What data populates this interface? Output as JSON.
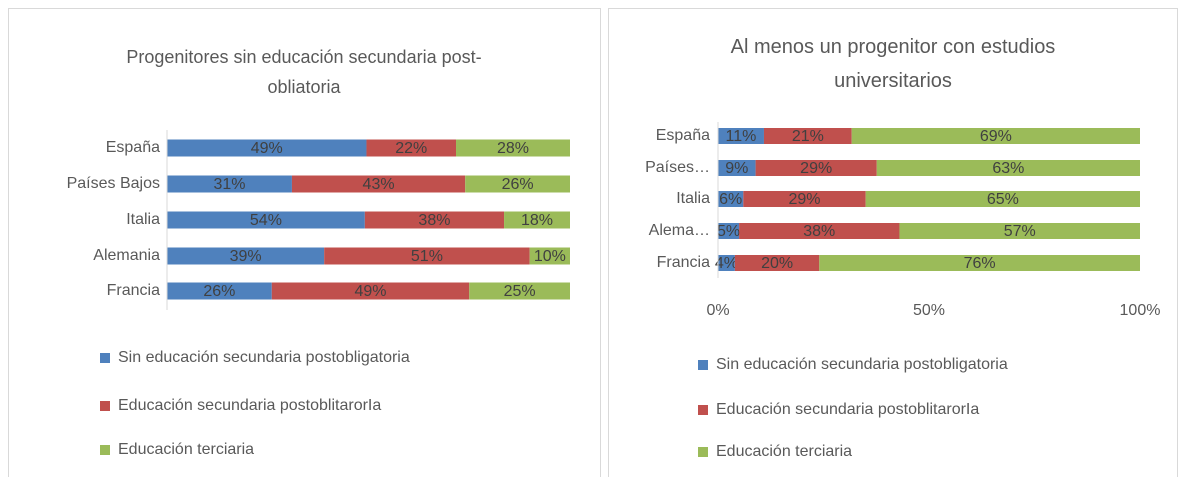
{
  "chart_data": [
    {
      "type": "bar",
      "orientation": "horizontal",
      "stacking": "percent",
      "title": "Progenitores sin educación secundaria post-obliatoria",
      "categories": [
        "España",
        "Países Bajos",
        "Italia",
        "Alemania",
        "Francia"
      ],
      "series": [
        {
          "name": "Sin educación secundaria postobligatoria",
          "color": "#4f81bd",
          "values": [
            49,
            31,
            54,
            39,
            26
          ],
          "value_labels": [
            "49%",
            "31%",
            "54%",
            "39%",
            "26%"
          ]
        },
        {
          "name": "Educación secundaria postoblitarorIa",
          "color": "#c0504d",
          "values": [
            22,
            43,
            38,
            51,
            49
          ],
          "value_labels": [
            "22%",
            "43%",
            "38%",
            "51%",
            "49%"
          ]
        },
        {
          "name": "Educación terciaria",
          "color": "#9bbb59",
          "values": [
            28,
            26,
            18,
            10,
            25
          ],
          "value_labels": [
            "28%",
            "26%",
            "18%",
            "10%",
            "25%"
          ]
        }
      ],
      "legend": "bottom"
    },
    {
      "type": "bar",
      "orientation": "horizontal",
      "stacking": "percent",
      "title": "Al menos un progenitor con estudios universitarios",
      "categories": [
        "España",
        "Países…",
        "Italia",
        "Alema…",
        "Francia"
      ],
      "series": [
        {
          "name": "Sin educación secundaria postobligatoria",
          "color": "#4f81bd",
          "values": [
            11,
            9,
            6,
            5,
            4
          ],
          "value_labels": [
            "11%",
            "9%",
            "6%",
            "5%",
            "4%"
          ]
        },
        {
          "name": "Educación secundaria postoblitarorIa",
          "color": "#c0504d",
          "values": [
            21,
            29,
            29,
            38,
            20
          ],
          "value_labels": [
            "21%",
            "29%",
            "29%",
            "38%",
            "20%"
          ]
        },
        {
          "name": "Educación terciaria",
          "color": "#9bbb59",
          "values": [
            69,
            63,
            65,
            57,
            76
          ],
          "value_labels": [
            "69%",
            "63%",
            "65%",
            "57%",
            "76%"
          ]
        }
      ],
      "xlim": [
        0,
        100
      ],
      "xticks": [
        {
          "value": 0,
          "label": "0%"
        },
        {
          "value": 50,
          "label": "50%"
        },
        {
          "value": 100,
          "label": "100%"
        }
      ],
      "legend": "bottom"
    }
  ]
}
